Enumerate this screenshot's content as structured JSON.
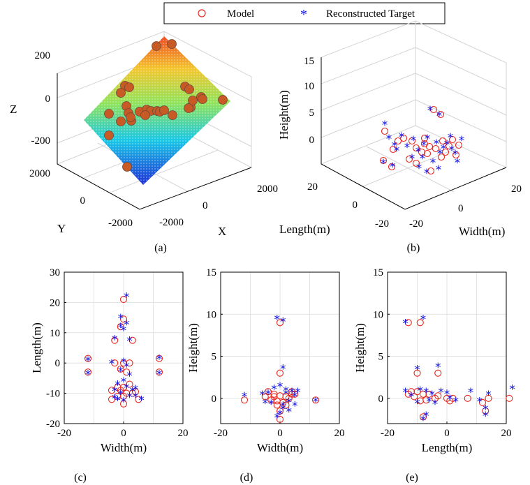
{
  "legend": {
    "model_label": "Model",
    "target_label": "Reconstructed Target",
    "model_color": "#e8261e",
    "target_color": "#1010e8"
  },
  "colors": {
    "surface_scale": [
      "#1f2fd6",
      "#17c8e6",
      "#8fe35a",
      "#f3c62c",
      "#ef4a22"
    ],
    "ball_color": "#c85a26"
  },
  "chart_data": [
    {
      "id": "a",
      "caption": "(a)",
      "type": "scatter3d",
      "xlabel": "X",
      "ylabel": "Y",
      "zlabel": "Z",
      "x_ticks": [
        "-2000",
        "0",
        "2000"
      ],
      "y_ticks": [
        "-2000",
        "0",
        "2000"
      ],
      "z_ticks": [
        "200",
        "0",
        "-200"
      ],
      "zlim": [
        -300,
        250
      ],
      "surface": "inclined plane colored by height (jet colormap)",
      "points": "terrain markers on the inclined plane",
      "grid": true
    },
    {
      "id": "b",
      "caption": "(b)",
      "type": "scatter3d",
      "xlabel": "Width(m)",
      "ylabel": "Length(m)",
      "zlabel": "Height(m)",
      "width_ticks": [
        "-20",
        "0",
        "20"
      ],
      "length_ticks": [
        "20",
        "0",
        "-20"
      ],
      "height_ticks": [
        "15",
        "10",
        "5",
        "0"
      ],
      "series": [
        {
          "name": "Model"
        },
        {
          "name": "Reconstructed Target"
        }
      ],
      "grid": true
    },
    {
      "id": "c",
      "caption": "(c)",
      "type": "scatter",
      "xlabel": "Width(m)",
      "ylabel": "Length(m)",
      "xlim": [
        -20,
        20
      ],
      "ylim": [
        -20,
        30
      ],
      "x_ticks": [
        "-20",
        "0",
        "20"
      ],
      "y_ticks": [
        "30",
        "20",
        "10",
        "0",
        "-10",
        "-20"
      ],
      "grid": true,
      "series": [
        {
          "name": "Model",
          "points": [
            [
              0,
              21
            ],
            [
              0,
              14.5
            ],
            [
              -1,
              12
            ],
            [
              3,
              7.5
            ],
            [
              -3,
              7.5
            ],
            [
              -12,
              1.5
            ],
            [
              12,
              1.5
            ],
            [
              -12,
              -3
            ],
            [
              12,
              -3
            ],
            [
              -3,
              0
            ],
            [
              0,
              0
            ],
            [
              2,
              0
            ],
            [
              -1,
              -2
            ],
            [
              1,
              -3
            ],
            [
              -4,
              -9
            ],
            [
              -2,
              -8
            ],
            [
              0,
              -8
            ],
            [
              2,
              -7
            ],
            [
              -1,
              -9
            ],
            [
              0,
              -11
            ],
            [
              3,
              -10
            ],
            [
              5,
              -12
            ],
            [
              -4,
              -12
            ],
            [
              0,
              -13.5
            ],
            [
              -2,
              -11
            ],
            [
              4,
              -9.5
            ],
            [
              1,
              -10
            ]
          ]
        },
        {
          "name": "Reconstructed Target",
          "points": [
            [
              1,
              22
            ],
            [
              -1,
              15
            ],
            [
              1,
              13
            ],
            [
              -1,
              12
            ],
            [
              0,
              11
            ],
            [
              -3,
              8
            ],
            [
              2,
              7.5
            ],
            [
              -12,
              1
            ],
            [
              12,
              1.5
            ],
            [
              -12,
              -3.5
            ],
            [
              12,
              -3.5
            ],
            [
              -4,
              0
            ],
            [
              0,
              0.5
            ],
            [
              1,
              -1
            ],
            [
              -1,
              -2.5
            ],
            [
              2,
              -4
            ],
            [
              -3,
              -9
            ],
            [
              -2,
              -7
            ],
            [
              0,
              -6
            ],
            [
              1,
              -8
            ],
            [
              -1,
              -10
            ],
            [
              3,
              -9
            ],
            [
              4,
              -11
            ],
            [
              6,
              -12
            ],
            [
              -3,
              -11.5
            ],
            [
              0,
              -12.5
            ],
            [
              -2,
              -12
            ],
            [
              4,
              -8.5
            ],
            [
              2,
              -11
            ]
          ]
        }
      ]
    },
    {
      "id": "d",
      "caption": "(d)",
      "type": "scatter",
      "xlabel": "Width(m)",
      "ylabel": "Height(m)",
      "xlim": [
        -20,
        20
      ],
      "ylim": [
        -3,
        15
      ],
      "x_ticks": [
        "-20",
        "0",
        "20"
      ],
      "y_ticks": [
        "15",
        "10",
        "5",
        "0"
      ],
      "grid": true,
      "series": [
        {
          "name": "Model",
          "points": [
            [
              0,
              9
            ],
            [
              0,
              3
            ],
            [
              -12,
              -0.2
            ],
            [
              12,
              -0.2
            ],
            [
              -4,
              0.8
            ],
            [
              -2,
              0.5
            ],
            [
              0,
              0.3
            ],
            [
              2,
              0.2
            ],
            [
              4,
              0.5
            ],
            [
              -1,
              -0.3
            ],
            [
              1,
              -0.5
            ],
            [
              3,
              0
            ],
            [
              5,
              0.5
            ],
            [
              -3,
              -0.2
            ],
            [
              -5,
              0.2
            ],
            [
              0,
              -1.5
            ],
            [
              0,
              -2.5
            ],
            [
              -1,
              -0.8
            ],
            [
              2,
              -0.8
            ],
            [
              4,
              0.8
            ],
            [
              -2,
              0.2
            ]
          ]
        },
        {
          "name": "Reconstructed Target",
          "points": [
            [
              -1,
              9.5
            ],
            [
              1,
              9.2
            ],
            [
              1,
              3.6
            ],
            [
              -12,
              0.3
            ],
            [
              12,
              -0.3
            ],
            [
              -4,
              0.6
            ],
            [
              -2,
              1.2
            ],
            [
              0,
              1.5
            ],
            [
              2,
              1
            ],
            [
              4,
              0.8
            ],
            [
              -3,
              -0.6
            ],
            [
              1,
              -0.8
            ],
            [
              3,
              -0.4
            ],
            [
              5,
              0.3
            ],
            [
              6,
              0.8
            ],
            [
              -5,
              -0.5
            ],
            [
              0,
              -1.8
            ],
            [
              -1,
              -2.2
            ],
            [
              1,
              -1.2
            ],
            [
              3,
              -1.5
            ],
            [
              5,
              -0.8
            ],
            [
              2,
              0.6
            ],
            [
              -6,
              0.5
            ]
          ]
        }
      ]
    },
    {
      "id": "e",
      "caption": "(e)",
      "type": "scatter",
      "xlabel": "Length(m)",
      "ylabel": "Height(m)",
      "xlim": [
        -20,
        20
      ],
      "ylim": [
        -3,
        15
      ],
      "x_ticks": [
        "-20",
        "0",
        "20"
      ],
      "y_ticks": [
        "15",
        "10",
        "5",
        "0"
      ],
      "grid": true,
      "series": [
        {
          "name": "Model",
          "points": [
            [
              -13,
              9
            ],
            [
              -9,
              9
            ],
            [
              -10,
              3
            ],
            [
              -3,
              3
            ],
            [
              21,
              0
            ],
            [
              -12,
              0.8
            ],
            [
              -10,
              0.8
            ],
            [
              -8,
              0.5
            ],
            [
              -6,
              0.5
            ],
            [
              -3,
              0.3
            ],
            [
              0,
              0
            ],
            [
              1,
              -0.3
            ],
            [
              2,
              0
            ],
            [
              7,
              0
            ],
            [
              12,
              -0.5
            ],
            [
              14,
              0
            ],
            [
              13,
              -1.5
            ],
            [
              -11,
              0.2
            ],
            [
              -9,
              -0.3
            ],
            [
              -7,
              -0.2
            ],
            [
              -4,
              0
            ],
            [
              -8,
              -2.2
            ],
            [
              -13,
              0.5
            ]
          ]
        },
        {
          "name": "Reconstructed Target",
          "points": [
            [
              -14,
              9
            ],
            [
              -8,
              9.5
            ],
            [
              -10,
              3.5
            ],
            [
              -3,
              3.8
            ],
            [
              22,
              1.2
            ],
            [
              -14,
              0.8
            ],
            [
              -12,
              0.3
            ],
            [
              -9,
              1
            ],
            [
              -7,
              0.8
            ],
            [
              -5,
              0.5
            ],
            [
              -2,
              0.8
            ],
            [
              0,
              0.6
            ],
            [
              1,
              0
            ],
            [
              3,
              -0.3
            ],
            [
              8,
              0.8
            ],
            [
              11,
              -0.3
            ],
            [
              14,
              0.5
            ],
            [
              13,
              -1.2
            ],
            [
              13,
              -2
            ],
            [
              -10,
              -0.5
            ],
            [
              -6,
              -0.3
            ],
            [
              -4,
              -0.6
            ],
            [
              -8,
              -2.5
            ],
            [
              -7,
              -2
            ]
          ]
        }
      ]
    }
  ]
}
